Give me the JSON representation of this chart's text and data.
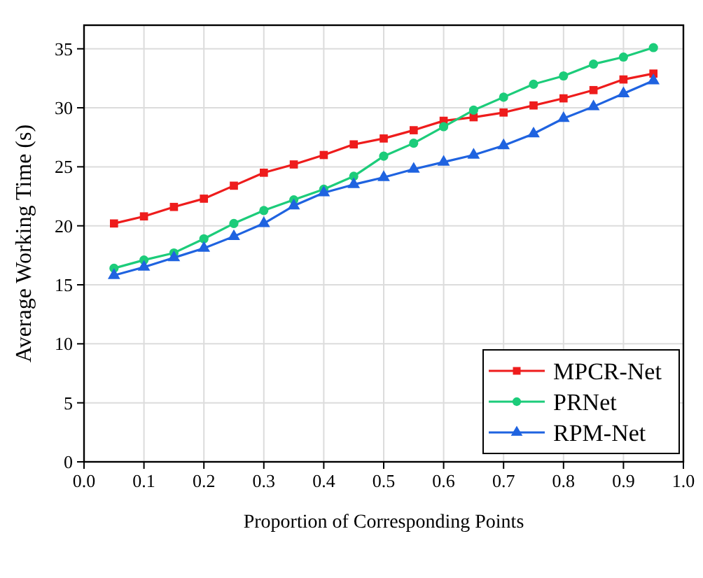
{
  "chart_data": {
    "type": "line",
    "xlabel": "Proportion of Corresponding Points",
    "ylabel": "Average Working Time (s)",
    "x": [
      0.05,
      0.1,
      0.15,
      0.2,
      0.25,
      0.3,
      0.35,
      0.4,
      0.45,
      0.5,
      0.55,
      0.6,
      0.65,
      0.7,
      0.75,
      0.8,
      0.85,
      0.9,
      0.95
    ],
    "series": [
      {
        "name": "MPCR-Net",
        "color": "#ee1c1c",
        "marker": "square",
        "values": [
          20.2,
          20.8,
          21.6,
          22.3,
          23.4,
          24.5,
          25.2,
          26.0,
          26.9,
          27.4,
          28.1,
          28.9,
          29.2,
          29.6,
          30.2,
          30.8,
          31.5,
          32.4,
          32.9
        ]
      },
      {
        "name": "PRNet",
        "color": "#1ccc7a",
        "marker": "circle",
        "values": [
          16.4,
          17.1,
          17.7,
          18.9,
          20.2,
          21.3,
          22.2,
          23.1,
          24.2,
          25.9,
          27.0,
          28.4,
          29.8,
          30.9,
          32.0,
          32.7,
          33.7,
          34.3,
          35.1
        ]
      },
      {
        "name": "RPM-Net",
        "color": "#1f63e0",
        "marker": "triangle",
        "values": [
          15.8,
          16.5,
          17.3,
          18.1,
          19.1,
          20.2,
          21.7,
          22.8,
          23.5,
          24.1,
          24.8,
          25.4,
          26.0,
          26.8,
          27.8,
          29.1,
          30.1,
          31.2,
          32.3
        ]
      }
    ],
    "xlim": [
      0,
      1
    ],
    "xticks": [
      {
        "value": 0,
        "label": "0.0"
      },
      0.1,
      0.2,
      0.3,
      0.4,
      0.5,
      0.6,
      0.7,
      0.8,
      0.9,
      {
        "value": 1,
        "label": "1.0"
      }
    ],
    "ylim": [
      0,
      37
    ],
    "yticks": [
      0,
      5,
      10,
      15,
      20,
      25,
      30,
      35
    ],
    "grid": true,
    "legend": "bottom right"
  }
}
